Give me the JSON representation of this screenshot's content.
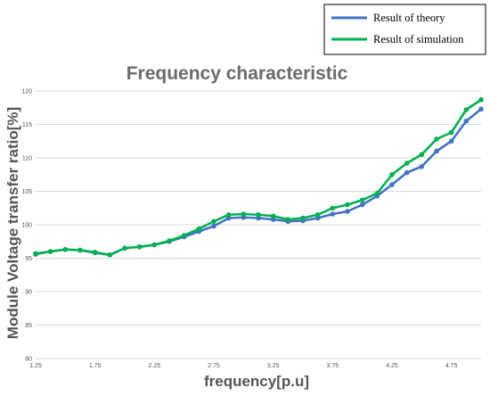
{
  "chart_data": {
    "type": "line",
    "title": "Frequency characteristic",
    "xlabel": "frequency[p.u]",
    "ylabel": "Module Voltage transfer ratio[%]",
    "xlim": [
      1.25,
      5.0
    ],
    "ylim": [
      80,
      120
    ],
    "x_ticks": [
      "1.25",
      "1.75",
      "2.25",
      "2.75",
      "3.25",
      "3.75",
      "4.25",
      "4.75"
    ],
    "y_ticks": [
      "80",
      "85",
      "90",
      "95",
      "100",
      "105",
      "110",
      "115",
      "120"
    ],
    "grid": "horizontal",
    "legend": "top-right",
    "series": [
      {
        "name": "Result of theory",
        "color": "#4472c4",
        "x": [
          1.25,
          1.375,
          1.5,
          1.625,
          1.75,
          1.875,
          2.0,
          2.125,
          2.25,
          2.375,
          2.5,
          2.625,
          2.75,
          2.875,
          3.0,
          3.125,
          3.25,
          3.375,
          3.5,
          3.625,
          3.75,
          3.875,
          4.0,
          4.125,
          4.25,
          4.375,
          4.5,
          4.625,
          4.75,
          4.875,
          5.0
        ],
        "values": [
          95.6,
          96.0,
          96.3,
          96.2,
          95.8,
          95.5,
          96.5,
          96.7,
          97.0,
          97.5,
          98.2,
          99.0,
          99.8,
          101.0,
          101.1,
          101.0,
          100.8,
          100.5,
          100.6,
          101.0,
          101.6,
          102.0,
          103.0,
          104.3,
          106.0,
          107.8,
          108.7,
          111.0,
          112.5,
          115.5,
          117.3
        ]
      },
      {
        "name": "Result of simulation",
        "color": "#00b050",
        "x": [
          1.25,
          1.375,
          1.5,
          1.625,
          1.75,
          1.875,
          2.0,
          2.125,
          2.25,
          2.375,
          2.5,
          2.625,
          2.75,
          2.875,
          3.0,
          3.125,
          3.25,
          3.375,
          3.5,
          3.625,
          3.75,
          3.875,
          4.0,
          4.125,
          4.25,
          4.375,
          4.5,
          4.625,
          4.75,
          4.875,
          5.0
        ],
        "values": [
          95.7,
          96.0,
          96.3,
          96.2,
          95.9,
          95.5,
          96.5,
          96.7,
          97.0,
          97.6,
          98.4,
          99.4,
          100.5,
          101.5,
          101.6,
          101.5,
          101.3,
          100.8,
          101.0,
          101.5,
          102.5,
          103.0,
          103.7,
          104.7,
          107.5,
          109.2,
          110.5,
          112.8,
          113.8,
          117.2,
          118.7
        ]
      }
    ]
  }
}
